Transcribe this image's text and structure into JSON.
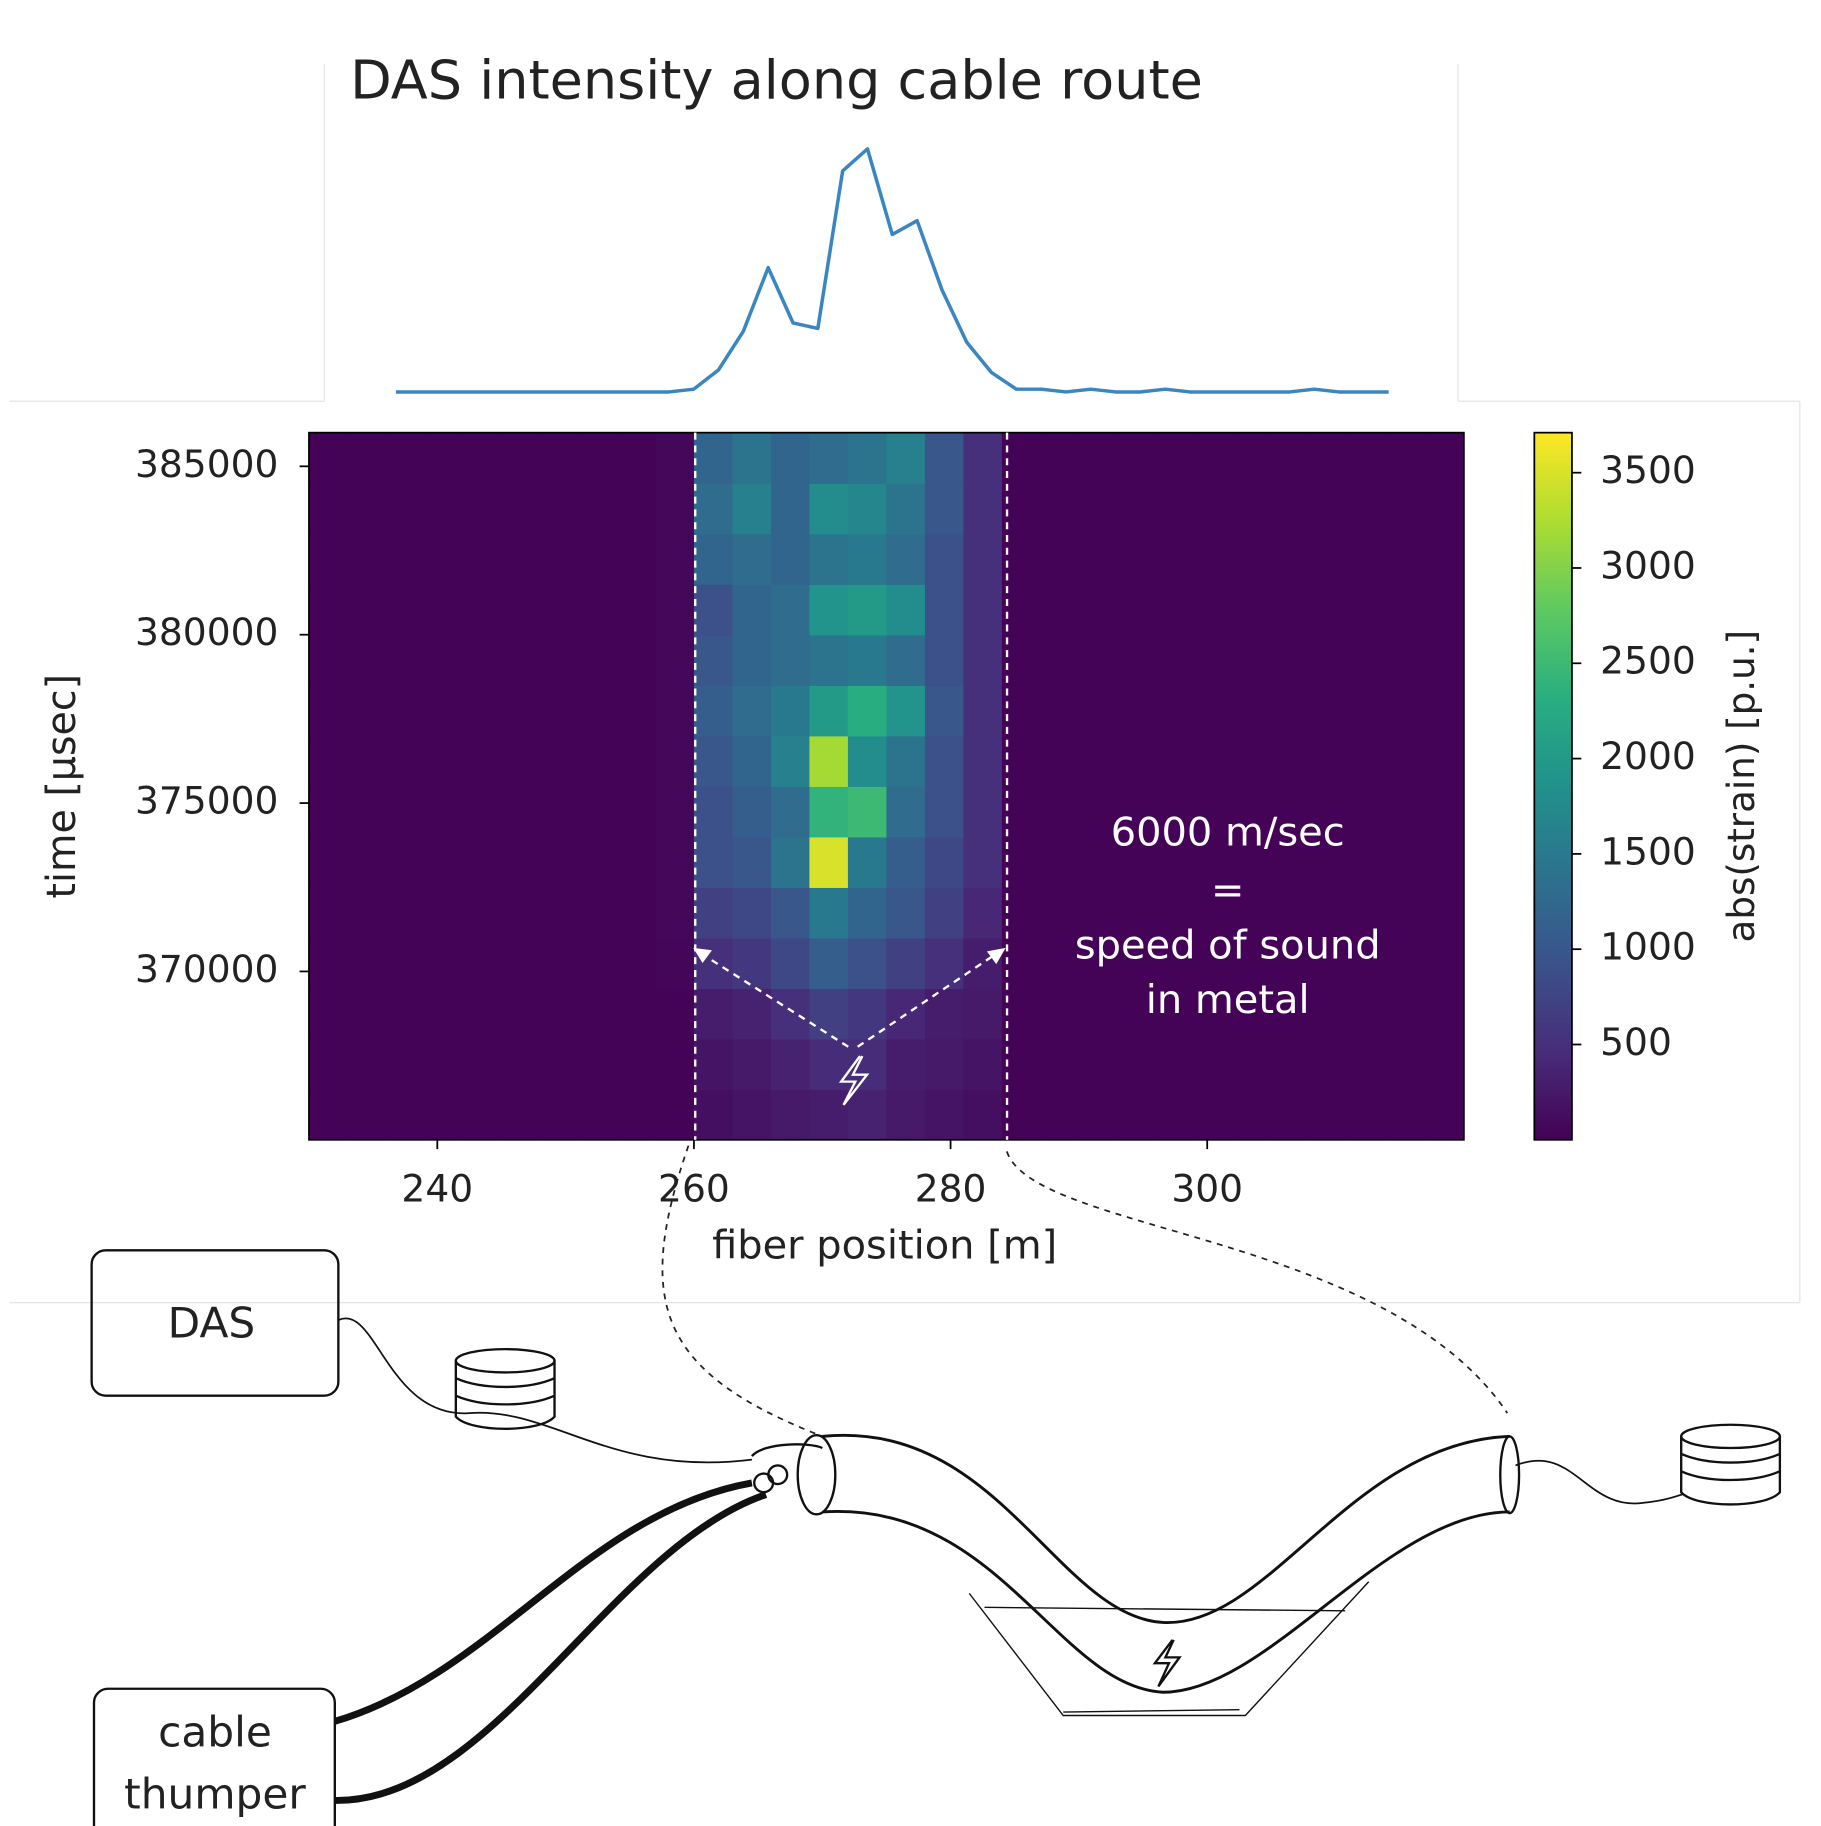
{
  "chart_data": [
    {
      "type": "line",
      "title": "DAS intensity along cable route",
      "color": "#3a86c0",
      "values": [
        0,
        0,
        0,
        0,
        0,
        0,
        0,
        0,
        0,
        0,
        0,
        0,
        1,
        8,
        22,
        45,
        25,
        23,
        80,
        88,
        57,
        62,
        37,
        18,
        7,
        1,
        1,
        0,
        1,
        0,
        0,
        1,
        0,
        0,
        0,
        0,
        0,
        1,
        0,
        0,
        0
      ]
    },
    {
      "type": "heatmap",
      "colormap": "viridis",
      "xlabel": "fiber position [m]",
      "ylabel": "time [μsec]",
      "colorbar_label": "abs(strain) [p.u.]",
      "xlim": [
        230,
        320
      ],
      "ylim": [
        365000,
        386000
      ],
      "zlim": [
        0,
        3710
      ],
      "xticks": [
        240,
        260,
        280,
        300
      ],
      "yticks": [
        370000,
        375000,
        380000,
        385000
      ],
      "zticks": [
        500,
        1000,
        1500,
        2000,
        2500,
        3000,
        3500
      ],
      "xbins": [
        230,
        233,
        236,
        239,
        242,
        245,
        248,
        251,
        254,
        257,
        260,
        263,
        266,
        269,
        272,
        275,
        278,
        281,
        284,
        287,
        290,
        293,
        296,
        299,
        302,
        305,
        308,
        311,
        314,
        317,
        320
      ],
      "ybins": [
        365000,
        366500,
        368000,
        369500,
        371000,
        372500,
        374000,
        375500,
        377000,
        378500,
        380000,
        381500,
        383000,
        384500,
        386000
      ],
      "z": [
        [
          20,
          20,
          20,
          20,
          20,
          20,
          20,
          20,
          20,
          20,
          150,
          200,
          250,
          300,
          350,
          250,
          200,
          150,
          20,
          20,
          20,
          20,
          20,
          20,
          20,
          20,
          20,
          20,
          20,
          20
        ],
        [
          20,
          20,
          20,
          20,
          20,
          20,
          20,
          20,
          20,
          20,
          200,
          250,
          350,
          450,
          450,
          300,
          250,
          200,
          20,
          20,
          20,
          20,
          20,
          20,
          20,
          20,
          20,
          20,
          20,
          20
        ],
        [
          20,
          20,
          20,
          20,
          20,
          20,
          20,
          20,
          20,
          20,
          300,
          350,
          500,
          700,
          600,
          400,
          300,
          250,
          20,
          20,
          20,
          20,
          20,
          20,
          20,
          20,
          20,
          20,
          20,
          20
        ],
        [
          20,
          20,
          20,
          20,
          20,
          20,
          20,
          20,
          20,
          50,
          500,
          600,
          800,
          1100,
          900,
          700,
          500,
          300,
          20,
          20,
          20,
          20,
          20,
          20,
          20,
          20,
          20,
          20,
          20,
          20
        ],
        [
          20,
          20,
          20,
          20,
          20,
          20,
          20,
          20,
          20,
          60,
          700,
          800,
          1000,
          1500,
          1200,
          1000,
          700,
          400,
          20,
          20,
          20,
          20,
          20,
          20,
          20,
          20,
          20,
          20,
          20,
          20
        ],
        [
          20,
          20,
          20,
          20,
          20,
          20,
          20,
          20,
          20,
          60,
          900,
          1000,
          1400,
          3500,
          1500,
          1100,
          800,
          500,
          20,
          20,
          20,
          20,
          20,
          20,
          20,
          20,
          20,
          20,
          20,
          20
        ],
        [
          20,
          20,
          20,
          20,
          20,
          20,
          20,
          20,
          20,
          60,
          900,
          1100,
          1300,
          2400,
          2500,
          1300,
          900,
          500,
          20,
          20,
          20,
          20,
          20,
          20,
          20,
          20,
          20,
          20,
          20,
          20
        ],
        [
          20,
          20,
          20,
          20,
          20,
          20,
          20,
          20,
          20,
          60,
          1000,
          1200,
          1600,
          3200,
          1800,
          1400,
          900,
          500,
          20,
          20,
          20,
          20,
          20,
          20,
          20,
          20,
          20,
          20,
          20,
          20
        ],
        [
          20,
          20,
          20,
          20,
          20,
          20,
          20,
          20,
          20,
          60,
          1100,
          1300,
          1500,
          2000,
          2300,
          1900,
          1000,
          500,
          20,
          20,
          20,
          20,
          20,
          20,
          20,
          20,
          20,
          20,
          20,
          20
        ],
        [
          20,
          20,
          20,
          20,
          20,
          20,
          20,
          20,
          20,
          60,
          1000,
          1200,
          1300,
          1400,
          1500,
          1300,
          900,
          500,
          20,
          20,
          20,
          20,
          20,
          20,
          20,
          20,
          20,
          20,
          20,
          20
        ],
        [
          20,
          20,
          20,
          20,
          20,
          20,
          20,
          20,
          20,
          60,
          900,
          1200,
          1300,
          1900,
          2000,
          1800,
          900,
          500,
          20,
          20,
          20,
          20,
          20,
          20,
          20,
          20,
          20,
          20,
          20,
          20
        ],
        [
          20,
          20,
          20,
          20,
          20,
          20,
          20,
          20,
          20,
          60,
          1200,
          1300,
          1200,
          1400,
          1500,
          1300,
          900,
          500,
          20,
          20,
          20,
          20,
          20,
          20,
          20,
          20,
          20,
          20,
          20,
          20
        ],
        [
          20,
          20,
          20,
          20,
          20,
          20,
          20,
          20,
          20,
          60,
          1300,
          1600,
          1200,
          1800,
          1700,
          1400,
          1000,
          500,
          20,
          20,
          20,
          20,
          20,
          20,
          20,
          20,
          20,
          20,
          20,
          20
        ],
        [
          20,
          20,
          20,
          20,
          20,
          20,
          20,
          20,
          20,
          60,
          1200,
          1400,
          1200,
          1300,
          1400,
          1600,
          1000,
          500,
          20,
          20,
          20,
          20,
          20,
          20,
          20,
          20,
          20,
          20,
          20,
          20
        ]
      ],
      "vlines": [
        260.1,
        284.4
      ],
      "annotation": [
        "6000 m/sec",
        "=",
        "speed of sound",
        "in metal"
      ]
    }
  ],
  "diagram": {
    "das_box": "DAS",
    "thumper_box": [
      "cable",
      "thumper"
    ]
  }
}
